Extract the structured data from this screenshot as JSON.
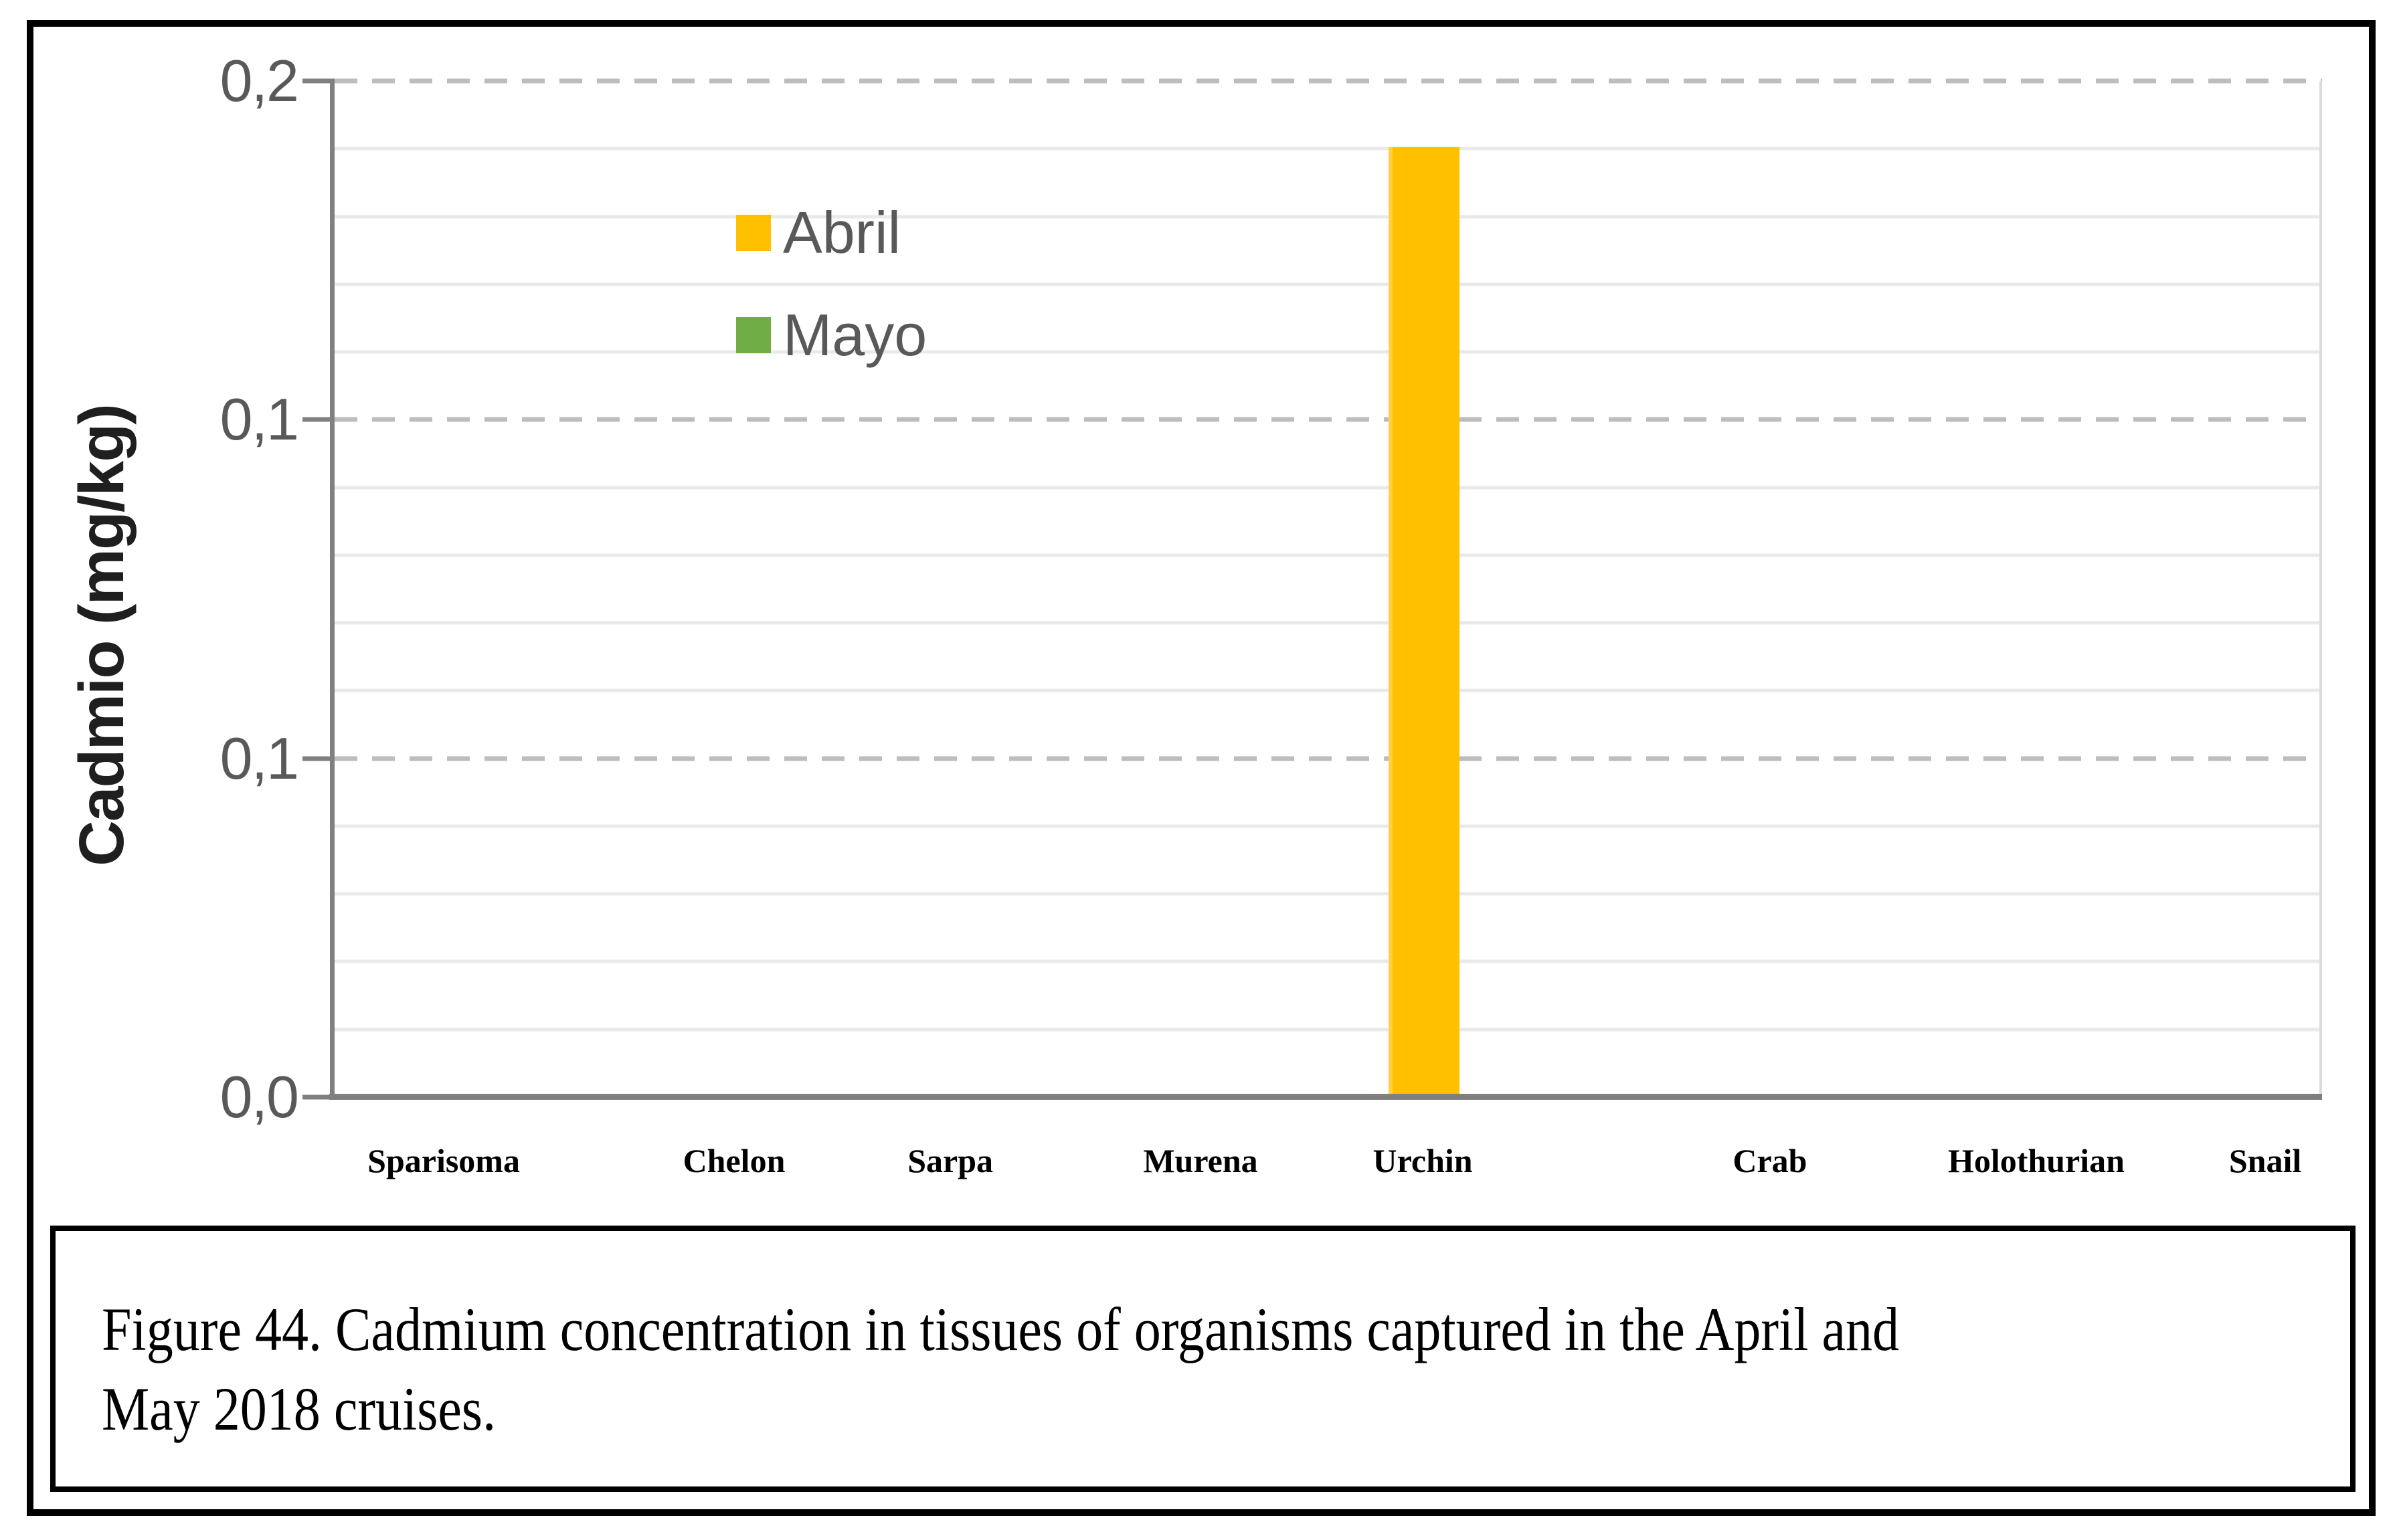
{
  "figure": {
    "caption": {
      "line1": "Figure 44. Cadmium concentration in tissues of organisms captured in the April and",
      "line2": "May 2018 cruises."
    }
  },
  "chart_data": {
    "type": "bar",
    "title": "",
    "xlabel": "",
    "ylabel": "Cadmio (mg/kg)",
    "ylim": [
      0,
      0.2
    ],
    "ytick_labels": [
      "0,2",
      "0,1",
      "0,1",
      "0,0"
    ],
    "grid": {
      "major": "dashed",
      "minor": "solid",
      "minor_subdivisions_per_major": 5,
      "major_intervals": 3
    },
    "legend_position": "top-left",
    "categories": [
      "Sparisoma",
      "Chelon",
      "Sarpa",
      "Murena",
      "Urchin",
      "Crab",
      "Holothurian",
      "Snail"
    ],
    "series": [
      {
        "name": "Abril",
        "color": "#FFC000",
        "values": [
          0,
          0,
          0,
          0,
          0.187,
          0,
          0,
          0
        ]
      },
      {
        "name": "Mayo",
        "color": "#70AD47",
        "values": [
          0,
          0,
          0,
          0,
          0,
          0,
          0,
          0
        ]
      }
    ]
  },
  "colors": {
    "axis": "#808080",
    "major_gridline": "#BDBDBD",
    "minor_gridline": "#E9E9E9",
    "tick_text": "#595959",
    "category_text": "#000000",
    "frame": "#000000"
  }
}
